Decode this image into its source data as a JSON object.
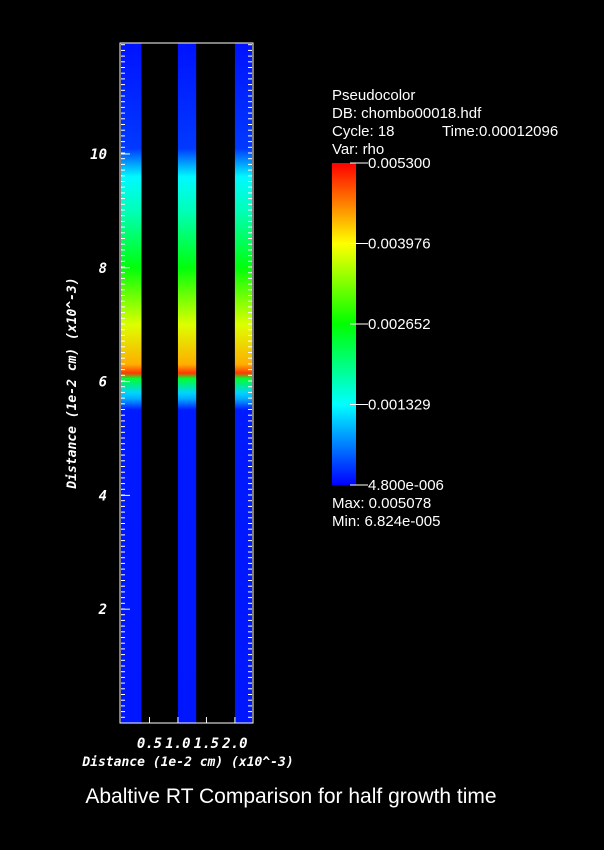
{
  "chart_data": {
    "type": "heatmap",
    "title": "Abaltive RT Comparison for half growth time",
    "xlabel": "Distance (1e-2 cm) (x10^-3)",
    "ylabel": "Distance (1e-2 cm) (x10^-3)",
    "x_tick_labels": [
      "0.5",
      "1.0",
      "1.5",
      "2.0"
    ],
    "x_ticks": [
      0.5,
      1.0,
      1.5,
      2.0
    ],
    "y_ticks": [
      2,
      4,
      6,
      8,
      10
    ],
    "xlim": [
      0,
      2.3
    ],
    "ylim": [
      0,
      11.95
    ],
    "columns": [
      {
        "x_start": 0.0,
        "x_end": 0.36
      },
      {
        "x_start": 1.0,
        "x_end": 1.32
      },
      {
        "x_start": 2.0,
        "x_end": 2.34
      }
    ],
    "profile": {
      "variable": "rho",
      "y": [
        0,
        5.5,
        5.7,
        5.8,
        6.05,
        6.15,
        6.3,
        7.0,
        8.0,
        9.0,
        9.6,
        10.1,
        11.95
      ],
      "rho": [
        0.00012,
        0.00014,
        0.0009,
        0.0011,
        0.0024,
        0.005,
        0.0044,
        0.0038,
        0.0026,
        0.0017,
        0.0013,
        0.0003,
        0.0001
      ]
    },
    "legend": {
      "plot_type": "Pseudocolor",
      "db": "DB: chombo00018.hdf",
      "cycle": "Cycle: 18",
      "time": "Time:0.00012096",
      "var": "Var: rho",
      "ticks": [
        "0.005300",
        "0.003976",
        "0.002652",
        "0.001329",
        "4.800e-006"
      ],
      "tick_values": [
        0.0053,
        0.003976,
        0.002652,
        0.001329,
        4.8e-06
      ],
      "range": [
        4.8e-06,
        0.0053
      ],
      "max_label": "Max:  0.005078",
      "min_label": "Min:  6.824e-005",
      "placement": "right"
    },
    "colormap": [
      "#0000ff",
      "#00ffff",
      "#00ff00",
      "#ffff00",
      "#ff0000"
    ]
  }
}
